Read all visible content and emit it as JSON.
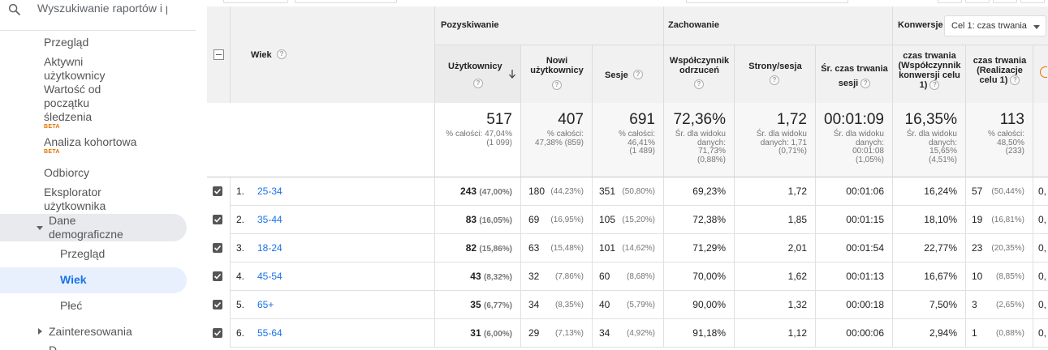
{
  "sidebar": {
    "search_placeholder": "Wyszukiwanie raportów i po",
    "items": [
      {
        "label": "Przegląd"
      },
      {
        "label": "Aktywni użytkownicy"
      },
      {
        "label": "Wartość od początku śledzenia",
        "badge": "BETA"
      },
      {
        "label": "Analiza kohortowa",
        "badge": "BETA"
      },
      {
        "label": "Odbiorcy"
      },
      {
        "label": "Eksplorator użytkownika"
      },
      {
        "label": "Dane demograficzne",
        "expanded": true
      },
      {
        "label": "Przegląd"
      },
      {
        "label": "Wiek",
        "selected": true
      },
      {
        "label": "Płeć"
      },
      {
        "label": "Zainteresowania",
        "expanded": false
      },
      {
        "label": "D"
      }
    ]
  },
  "table": {
    "dimension_header": "Wiek",
    "groups": {
      "acquisition": "Pozyskiwanie",
      "behavior": "Zachowanie",
      "conversions": "Konwersje",
      "goal_select": "Cel 1: czas trwania"
    },
    "columns": {
      "users": "Użytkownicy",
      "new_users": [
        "Nowi",
        "użytkownicy"
      ],
      "sessions": "Sesje",
      "bounce": [
        "Współczynnik",
        "odrzuceń"
      ],
      "pages": "Strony/sesja",
      "duration": [
        "Śr. czas trwania",
        "sesji"
      ],
      "conv_rate": [
        "czas trwania",
        "(Współczynnik",
        "konwersji celu",
        "1)"
      ],
      "completions": [
        "czas trwania",
        "(Realizacje",
        "celu 1)"
      ]
    },
    "totals": {
      "users": {
        "value": "517",
        "sub": [
          "% całości: 47,04%",
          "(1 099)"
        ]
      },
      "new_users": {
        "value": "407",
        "sub": [
          "% całości:",
          "47,38% (859)"
        ]
      },
      "sessions": {
        "value": "691",
        "sub": [
          "% całości:",
          "46,41%",
          "(1 489)"
        ]
      },
      "bounce": {
        "value": "72,36%",
        "sub": [
          "Śr. dla widoku",
          "danych:",
          "71,73%",
          "(0,88%)"
        ]
      },
      "pages": {
        "value": "1,72",
        "sub": [
          "Śr. dla widoku",
          "danych: 1,71",
          "(0,71%)"
        ]
      },
      "duration": {
        "value": "00:01:09",
        "sub": [
          "Śr. dla widoku",
          "danych:",
          "00:01:08",
          "(1,05%)"
        ]
      },
      "conv_rate": {
        "value": "16,35%",
        "sub": [
          "Śr. dla widoku",
          "danych:",
          "15,65%",
          "(4,51%)"
        ]
      },
      "completions": {
        "value": "113",
        "sub": [
          "% całości:",
          "48,50%",
          "(233)"
        ]
      }
    },
    "rows": [
      {
        "rank": "1.",
        "age": "25-34",
        "users": "243",
        "users_pct": "(47,00%)",
        "new": "180",
        "new_pct": "(44,23%)",
        "sess": "351",
        "sess_pct": "(50,80%)",
        "bounce": "69,23%",
        "pages": "1,72",
        "dur": "00:01:06",
        "conv": "16,24%",
        "comp": "57",
        "comp_pct": "(50,44%)",
        "next": "0,"
      },
      {
        "rank": "2.",
        "age": "35-44",
        "users": "83",
        "users_pct": "(16,05%)",
        "new": "69",
        "new_pct": "(16,95%)",
        "sess": "105",
        "sess_pct": "(15,20%)",
        "bounce": "72,38%",
        "pages": "1,85",
        "dur": "00:01:15",
        "conv": "18,10%",
        "comp": "19",
        "comp_pct": "(16,81%)",
        "next": "0,"
      },
      {
        "rank": "3.",
        "age": "18-24",
        "users": "82",
        "users_pct": "(15,86%)",
        "new": "63",
        "new_pct": "(15,48%)",
        "sess": "101",
        "sess_pct": "(14,62%)",
        "bounce": "71,29%",
        "pages": "2,01",
        "dur": "00:01:54",
        "conv": "22,77%",
        "comp": "23",
        "comp_pct": "(20,35%)",
        "next": "0,"
      },
      {
        "rank": "4.",
        "age": "45-54",
        "users": "43",
        "users_pct": "(8,32%)",
        "new": "32",
        "new_pct": "(7,86%)",
        "sess": "60",
        "sess_pct": "(8,68%)",
        "bounce": "70,00%",
        "pages": "1,62",
        "dur": "00:01:13",
        "conv": "16,67%",
        "comp": "10",
        "comp_pct": "(8,85%)",
        "next": "0,"
      },
      {
        "rank": "5.",
        "age": "65+",
        "users": "35",
        "users_pct": "(6,77%)",
        "new": "34",
        "new_pct": "(8,35%)",
        "sess": "40",
        "sess_pct": "(5,79%)",
        "bounce": "90,00%",
        "pages": "1,32",
        "dur": "00:00:18",
        "conv": "7,50%",
        "comp": "3",
        "comp_pct": "(2,65%)",
        "next": "0,"
      },
      {
        "rank": "6.",
        "age": "55-64",
        "users": "31",
        "users_pct": "(6,00%)",
        "new": "29",
        "new_pct": "(7,13%)",
        "sess": "34",
        "sess_pct": "(4,92%)",
        "bounce": "91,18%",
        "pages": "1,12",
        "dur": "00:00:06",
        "conv": "2,94%",
        "comp": "1",
        "comp_pct": "(0,88%)",
        "next": "0,"
      }
    ]
  },
  "colors": {
    "link": "#1a73e8",
    "beta": "#e37400",
    "selected_bg": "#e8f0fe",
    "header_bg": "#f1f1f1"
  }
}
